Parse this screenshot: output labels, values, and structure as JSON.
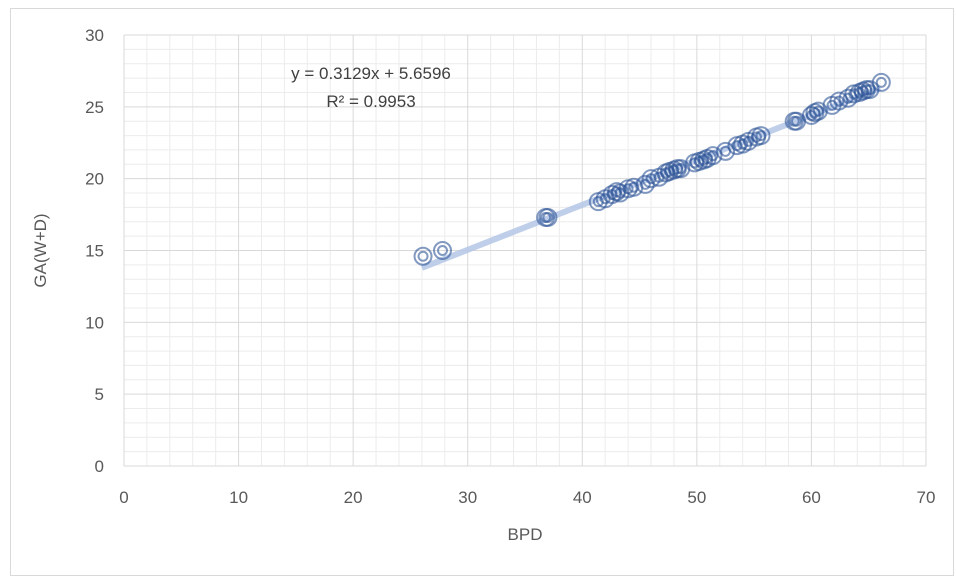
{
  "chart_data": {
    "type": "scatter",
    "xlabel": "BPD",
    "ylabel": "GA(W+D)",
    "xlim": [
      0,
      70
    ],
    "ylim": [
      0,
      30
    ],
    "xticks": [
      0,
      10,
      20,
      30,
      40,
      50,
      60,
      70
    ],
    "yticks": [
      0,
      5,
      10,
      15,
      20,
      25,
      30
    ],
    "grid": true,
    "trendline": {
      "slope": 0.3129,
      "intercept": 5.6596,
      "x_range": [
        26,
        66
      ],
      "equation_label": "y = 0.3129x + 5.6596",
      "r2_label": "R² = 0.9953"
    },
    "colors": {
      "marker": "#2f5597",
      "trendline": "#b4c7e7",
      "grid": "#d9d9d9"
    },
    "series": [
      {
        "points": [
          [
            26.1,
            14.6
          ],
          [
            27.8,
            15.0
          ],
          [
            36.8,
            17.3
          ],
          [
            37.0,
            17.3
          ],
          [
            41.4,
            18.4
          ],
          [
            42.0,
            18.6
          ],
          [
            42.6,
            18.9
          ],
          [
            43.0,
            19.1
          ],
          [
            43.3,
            19.0
          ],
          [
            44.0,
            19.3
          ],
          [
            44.5,
            19.4
          ],
          [
            45.5,
            19.6
          ],
          [
            46.0,
            20.0
          ],
          [
            46.7,
            20.1
          ],
          [
            47.3,
            20.4
          ],
          [
            47.6,
            20.5
          ],
          [
            48.0,
            20.6
          ],
          [
            48.3,
            20.7
          ],
          [
            48.6,
            20.7
          ],
          [
            49.8,
            21.1
          ],
          [
            50.2,
            21.2
          ],
          [
            50.6,
            21.3
          ],
          [
            50.9,
            21.4
          ],
          [
            51.4,
            21.6
          ],
          [
            52.5,
            21.9
          ],
          [
            53.5,
            22.3
          ],
          [
            54.0,
            22.4
          ],
          [
            54.5,
            22.6
          ],
          [
            55.2,
            22.9
          ],
          [
            55.6,
            23.0
          ],
          [
            58.5,
            24.0
          ],
          [
            58.7,
            24.0
          ],
          [
            60.0,
            24.4
          ],
          [
            60.3,
            24.6
          ],
          [
            60.6,
            24.7
          ],
          [
            61.8,
            25.1
          ],
          [
            62.4,
            25.4
          ],
          [
            63.2,
            25.6
          ],
          [
            63.7,
            25.9
          ],
          [
            64.2,
            26.0
          ],
          [
            64.5,
            26.1
          ],
          [
            64.8,
            26.2
          ],
          [
            65.1,
            26.2
          ],
          [
            66.1,
            26.7
          ]
        ]
      }
    ]
  }
}
